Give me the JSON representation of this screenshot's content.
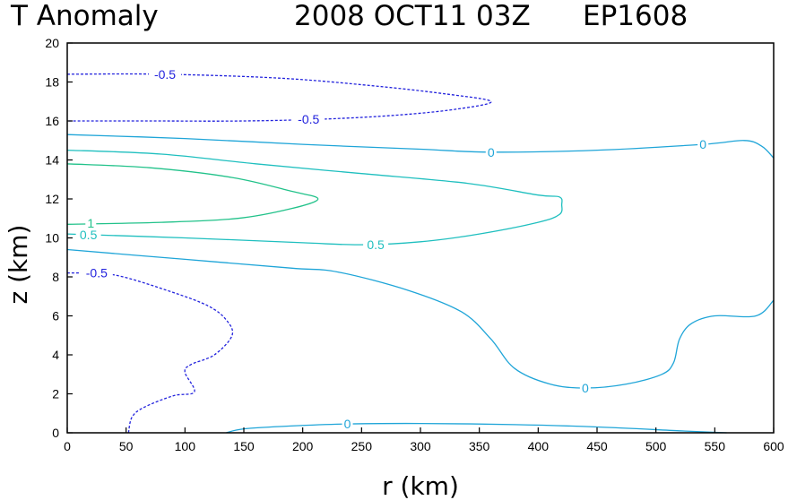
{
  "chart_data": {
    "type": "contour",
    "title": "T Anomaly",
    "date": "2008 OCT11 03Z",
    "storm_id": "EP1608",
    "xlabel": "r (km)",
    "ylabel": "z (km)",
    "xlim": [
      0,
      600
    ],
    "ylim": [
      0,
      20
    ],
    "xticks": [
      0,
      50,
      100,
      150,
      200,
      250,
      300,
      350,
      400,
      450,
      500,
      550,
      600
    ],
    "yticks": [
      0,
      2,
      4,
      6,
      8,
      10,
      12,
      14,
      16,
      18,
      20
    ],
    "grid": false,
    "colors": {
      "neg": "#2222dd",
      "zero": "#1fa5d8",
      "half": "#1fbfbf",
      "one": "#22c28a"
    },
    "contours": [
      {
        "level": -0.5,
        "label": "-0.5",
        "color": "neg",
        "style": "dashed",
        "points": [
          [
            0,
            18.4
          ],
          [
            80,
            18.4
          ],
          [
            180,
            18.2
          ],
          [
            260,
            17.8
          ],
          [
            320,
            17.4
          ],
          [
            360,
            17.0
          ],
          [
            330,
            16.6
          ],
          [
            280,
            16.3
          ],
          [
            220,
            16.1
          ],
          [
            150,
            16.0
          ],
          [
            70,
            16.0
          ],
          [
            0,
            16.0
          ]
        ],
        "labels": [
          {
            "x": 83,
            "y": 18.4
          },
          {
            "x": 205,
            "y": 16.1
          }
        ]
      },
      {
        "level": 0,
        "label": "0",
        "color": "zero",
        "style": "solid",
        "points": [
          [
            0,
            15.3
          ],
          [
            100,
            15.1
          ],
          [
            200,
            14.8
          ],
          [
            300,
            14.55
          ],
          [
            360,
            14.4
          ],
          [
            450,
            14.5
          ],
          [
            540,
            14.8
          ],
          [
            575,
            15.0
          ],
          [
            590,
            14.7
          ],
          [
            600,
            14.1
          ]
        ],
        "labels": [
          {
            "x": 360,
            "y": 14.4
          },
          {
            "x": 540,
            "y": 14.8
          }
        ]
      },
      {
        "level": 0.5,
        "label": "0.5",
        "color": "half",
        "style": "solid",
        "points": [
          [
            0,
            14.5
          ],
          [
            80,
            14.3
          ],
          [
            160,
            13.8
          ],
          [
            250,
            13.3
          ],
          [
            340,
            12.8
          ],
          [
            400,
            12.2
          ],
          [
            418,
            12.1
          ],
          [
            420,
            11.7
          ],
          [
            418,
            11.2
          ],
          [
            400,
            10.8
          ],
          [
            350,
            10.2
          ],
          [
            300,
            9.8
          ],
          [
            250,
            9.65
          ],
          [
            200,
            9.75
          ],
          [
            100,
            10.0
          ],
          [
            0,
            10.2
          ]
        ],
        "labels": [
          {
            "x": 262,
            "y": 9.65
          },
          {
            "x": 18,
            "y": 10.15
          }
        ]
      },
      {
        "level": 1,
        "label": "1",
        "color": "one",
        "style": "solid",
        "points": [
          [
            0,
            13.8
          ],
          [
            70,
            13.6
          ],
          [
            140,
            13.1
          ],
          [
            190,
            12.4
          ],
          [
            213,
            12.0
          ],
          [
            190,
            11.5
          ],
          [
            145,
            11.0
          ],
          [
            80,
            10.8
          ],
          [
            0,
            10.7
          ]
        ],
        "labels": [
          {
            "x": 20,
            "y": 10.75
          }
        ]
      },
      {
        "level": 0,
        "label": "0",
        "color": "zero",
        "style": "solid",
        "points": [
          [
            0,
            9.4
          ],
          [
            100,
            8.9
          ],
          [
            190,
            8.45
          ],
          [
            230,
            8.25
          ],
          [
            290,
            7.3
          ],
          [
            335,
            6.2
          ],
          [
            360,
            4.8
          ],
          [
            380,
            3.3
          ],
          [
            410,
            2.5
          ],
          [
            440,
            2.3
          ],
          [
            475,
            2.5
          ],
          [
            505,
            3.0
          ],
          [
            515,
            3.6
          ],
          [
            520,
            4.8
          ],
          [
            530,
            5.6
          ],
          [
            550,
            6.0
          ],
          [
            585,
            6.0
          ],
          [
            600,
            6.8
          ]
        ],
        "labels": [
          {
            "x": 440,
            "y": 2.3
          }
        ]
      },
      {
        "level": -0.5,
        "label": "-0.5",
        "color": "neg",
        "style": "dashed",
        "points": [
          [
            0,
            8.2
          ],
          [
            40,
            8.1
          ],
          [
            90,
            7.2
          ],
          [
            120,
            6.5
          ],
          [
            135,
            5.8
          ],
          [
            140,
            5.0
          ],
          [
            125,
            4.0
          ],
          [
            105,
            3.5
          ],
          [
            100,
            3.1
          ],
          [
            108,
            2.1
          ],
          [
            90,
            1.9
          ],
          [
            65,
            1.3
          ],
          [
            55,
            0.8
          ],
          [
            52,
            0.0
          ]
        ],
        "labels": [
          {
            "x": 25,
            "y": 8.2
          }
        ]
      },
      {
        "level": 0,
        "label": "0",
        "color": "zero",
        "style": "solid",
        "points": [
          [
            135,
            0.0
          ],
          [
            150,
            0.2
          ],
          [
            190,
            0.35
          ],
          [
            235,
            0.45
          ],
          [
            300,
            0.48
          ],
          [
            380,
            0.42
          ],
          [
            450,
            0.3
          ],
          [
            520,
            0.1
          ],
          [
            560,
            0.0
          ]
        ],
        "labels": [
          {
            "x": 238,
            "y": 0.45
          }
        ]
      }
    ]
  }
}
